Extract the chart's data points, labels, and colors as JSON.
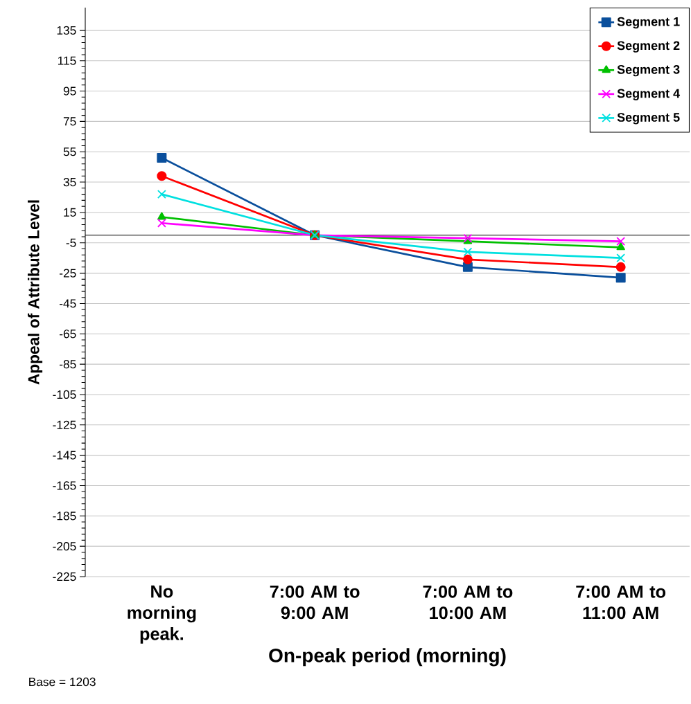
{
  "chart_data": {
    "type": "line",
    "xlabel": "On-peak period (morning)",
    "ylabel": "Appeal of Attribute Level",
    "categories": [
      "No morning peak.",
      "7:00 AM to 9:00 AM",
      "7:00 AM to 10:00 AM",
      "7:00 AM to 11:00 AM"
    ],
    "series": [
      {
        "name": "Segment 1",
        "color": "#0a4f9c",
        "marker": "square",
        "values": [
          51,
          0,
          -21,
          -28
        ]
      },
      {
        "name": "Segment 2",
        "color": "#ff0000",
        "marker": "circle",
        "values": [
          39,
          0,
          -16,
          -21
        ]
      },
      {
        "name": "Segment 3",
        "color": "#00c000",
        "marker": "triangle",
        "values": [
          12,
          0,
          -4,
          -8
        ]
      },
      {
        "name": "Segment 4",
        "color": "#ff00ff",
        "marker": "cross",
        "values": [
          8,
          0,
          -2,
          -4
        ]
      },
      {
        "name": "Segment 5",
        "color": "#00e0e0",
        "marker": "cross",
        "values": [
          27,
          0,
          -11,
          -15
        ]
      }
    ],
    "ylim": [
      -225,
      150
    ],
    "yticks": [
      -225,
      -205,
      -185,
      -165,
      -145,
      -125,
      -105,
      -85,
      -65,
      -45,
      -25,
      -5,
      15,
      35,
      55,
      75,
      95,
      115,
      135
    ],
    "grid": "y",
    "legend": "top right",
    "line_style": "solid",
    "annotations": [
      "Base = 1203"
    ]
  }
}
